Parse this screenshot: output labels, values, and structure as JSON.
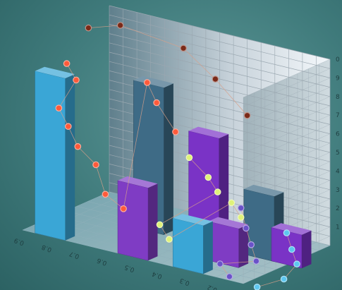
{
  "chart_data": {
    "type": "bar",
    "title": "",
    "xlabel": "",
    "ylabel": "",
    "x_tick_labels": [
      "0.9",
      "0.8",
      "0.7",
      "0.6",
      "0.5",
      "0.4",
      "0.3",
      "0.2",
      "0.1"
    ],
    "y_tick_labels": [
      "1",
      "2",
      "3",
      "4",
      "5",
      "6",
      "7",
      "8",
      "9",
      "0"
    ],
    "ylim": [
      0,
      10
    ],
    "grid": true,
    "legend": "none",
    "bars": [
      {
        "name": "bar-1",
        "x": 0.8,
        "depth": 0,
        "value": 8.7,
        "color": "#3aa6d6"
      },
      {
        "name": "bar-2",
        "x": 0.6,
        "depth": 1,
        "value": 7.9,
        "color": "#3e6b86"
      },
      {
        "name": "bar-3",
        "x": 0.5,
        "depth": 0,
        "value": 3.9,
        "color": "#7f3cc4"
      },
      {
        "name": "bar-4",
        "x": 0.4,
        "depth": 1,
        "value": 5.9,
        "color": "#7a33c6"
      },
      {
        "name": "bar-5",
        "x": 0.3,
        "depth": 0,
        "value": 2.6,
        "color": "#3aa6d6"
      },
      {
        "name": "bar-6",
        "x": 0.25,
        "depth": 0.5,
        "value": 2.1,
        "color": "#7f3cc4"
      },
      {
        "name": "bar-7",
        "x": 0.2,
        "depth": 1,
        "value": 3.5,
        "color": "#3e6b86"
      },
      {
        "name": "bar-8",
        "x": 0.1,
        "depth": 1,
        "value": 1.8,
        "color": "#7a33c6"
      }
    ],
    "series": [
      {
        "name": "",
        "marker_color": "#7a2a18",
        "points": [
          [
            0.85,
            1.2,
            9.8
          ],
          [
            0.75,
            1.3,
            10.2
          ],
          [
            0.6,
            1.8,
            9.0
          ],
          [
            0.5,
            1.9,
            7.6
          ],
          [
            0.4,
            2.0,
            5.9
          ]
        ]
      },
      {
        "name": "",
        "marker_color": "#ff5a3a",
        "points": [
          [
            0.85,
            0.7,
            8.4
          ],
          [
            0.8,
            0.6,
            7.8
          ],
          [
            0.8,
            0.2,
            6.7
          ],
          [
            0.75,
            0.1,
            6.0
          ],
          [
            0.7,
            0.0,
            5.2
          ],
          [
            0.65,
            0.1,
            4.3
          ],
          [
            0.6,
            0.0,
            3.0
          ],
          [
            0.55,
            0.1,
            2.3
          ],
          [
            0.7,
            1.6,
            7.0
          ],
          [
            0.65,
            1.5,
            6.2
          ],
          [
            0.55,
            1.3,
            5.2
          ]
        ]
      },
      {
        "name": "",
        "marker_color": "#dff27a",
        "points": [
          [
            0.5,
            1.3,
            4.0
          ],
          [
            0.4,
            1.1,
            3.5
          ],
          [
            0.35,
            1.0,
            3.0
          ],
          [
            0.45,
            0.3,
            1.6
          ],
          [
            0.4,
            0.2,
            1.1
          ],
          [
            0.3,
            1.0,
            2.6
          ],
          [
            0.25,
            0.9,
            2.1
          ]
        ]
      },
      {
        "name": "",
        "marker_color": "#6a52c8",
        "points": [
          [
            0.25,
            0.9,
            2.6
          ],
          [
            0.2,
            0.7,
            1.9
          ],
          [
            0.15,
            0.5,
            1.4
          ],
          [
            0.1,
            0.3,
            0.9
          ],
          [
            0.2,
            0.1,
            0.6
          ],
          [
            0.15,
            0.0,
            0.2
          ]
        ]
      },
      {
        "name": "",
        "marker_color": "#5ec7ef",
        "points": [
          [
            0.1,
            1.0,
            1.7
          ],
          [
            0.05,
            0.8,
            1.2
          ],
          [
            0.0,
            0.6,
            0.8
          ],
          [
            0.0,
            0.3,
            0.3
          ],
          [
            0.05,
            0.0,
            0.0
          ]
        ]
      }
    ],
    "colors": {
      "background": "#4b8a89",
      "grid": "#9aa7b0"
    }
  }
}
